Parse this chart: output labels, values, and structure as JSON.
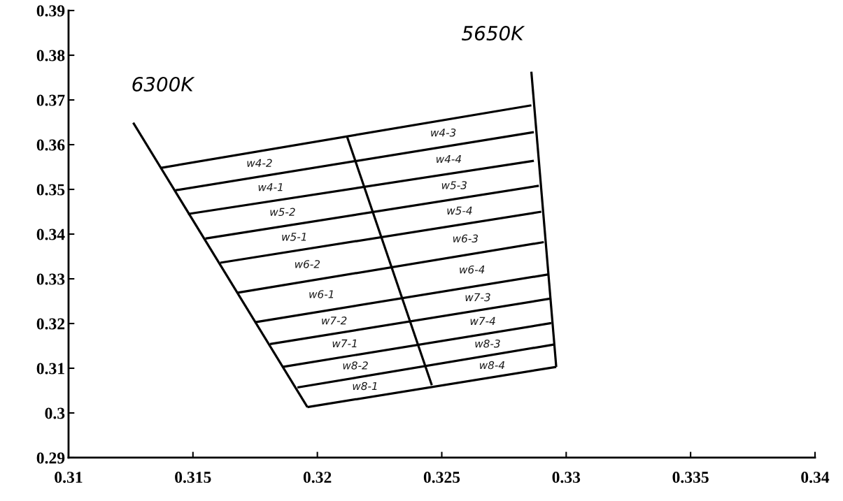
{
  "chart_data": {
    "type": "line",
    "xlim": [
      0.31,
      0.34
    ],
    "ylim": [
      0.29,
      0.39
    ],
    "xticks": [
      0.31,
      0.315,
      0.32,
      0.325,
      0.33,
      0.335,
      0.34
    ],
    "yticks": [
      0.29,
      0.3,
      0.31,
      0.32,
      0.33,
      0.34,
      0.35,
      0.36,
      0.37,
      0.38,
      0.39
    ],
    "grid": false,
    "legend": false,
    "marker": "none",
    "line_style": "solid",
    "series": [
      {
        "name": "6300K",
        "color": "#000000",
        "x": [
          0.3126,
          0.3196
        ],
        "values": [
          0.3649,
          0.3013
        ]
      },
      {
        "name": "5650K",
        "color": "#000000",
        "x": [
          0.3286,
          0.3296
        ],
        "values": [
          0.3763,
          0.3103
        ]
      },
      {
        "color": "#000000",
        "x": [
          0.3212,
          0.3246
        ],
        "values": [
          0.3617,
          0.3062
        ]
      },
      {
        "color": "#000000",
        "x": [
          0.3137,
          0.3286
        ],
        "values": [
          0.3548,
          0.3688
        ]
      },
      {
        "color": "#000000",
        "x": [
          0.3143,
          0.3287
        ],
        "values": [
          0.3498,
          0.3628
        ]
      },
      {
        "color": "#000000",
        "x": [
          0.3148,
          0.3287
        ],
        "values": [
          0.3445,
          0.3564
        ]
      },
      {
        "color": "#000000",
        "x": [
          0.3155,
          0.3289
        ],
        "values": [
          0.339,
          0.3508
        ]
      },
      {
        "color": "#000000",
        "x": [
          0.3161,
          0.329
        ],
        "values": [
          0.3336,
          0.345
        ]
      },
      {
        "color": "#000000",
        "x": [
          0.3168,
          0.3291
        ],
        "values": [
          0.3269,
          0.3382
        ]
      },
      {
        "color": "#000000",
        "x": [
          0.3175,
          0.3293
        ],
        "values": [
          0.3203,
          0.331
        ]
      },
      {
        "color": "#000000",
        "x": [
          0.3181,
          0.3294
        ],
        "values": [
          0.3154,
          0.3256
        ]
      },
      {
        "color": "#000000",
        "x": [
          0.3186,
          0.3294
        ],
        "values": [
          0.3103,
          0.3201
        ]
      },
      {
        "color": "#000000",
        "x": [
          0.3192,
          0.3295
        ],
        "values": [
          0.3057,
          0.3153
        ]
      },
      {
        "color": "#000000",
        "x": [
          0.3196,
          0.3296
        ],
        "values": [
          0.3013,
          0.3103
        ]
      }
    ],
    "annotations": [
      "w4-2",
      "w4-1",
      "w5-2",
      "w5-1",
      "w6-2",
      "w6-1",
      "w7-2",
      "w7-1",
      "w8-2",
      "w8-1",
      "w4-3",
      "w4-4",
      "w5-3",
      "w5-4",
      "w6-3",
      "w6-4",
      "w7-3",
      "w7-4",
      "w8-3",
      "w8-4"
    ]
  }
}
